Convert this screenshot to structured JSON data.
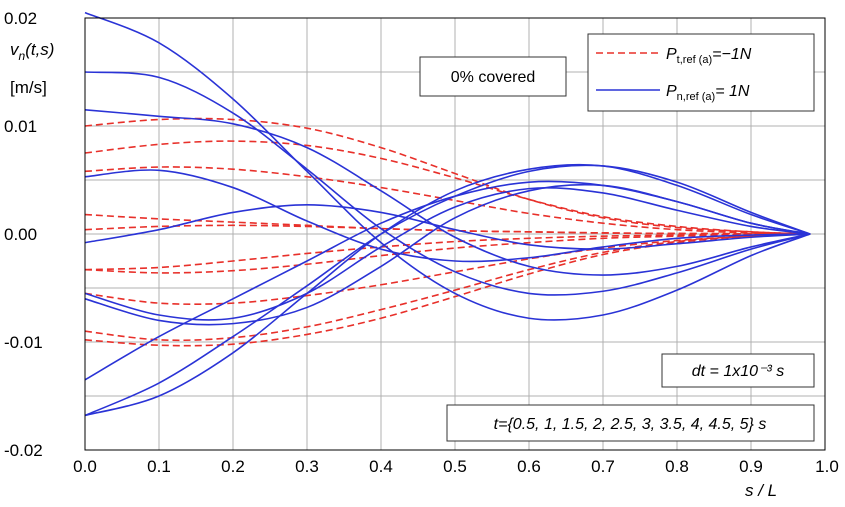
{
  "chart_data": {
    "type": "line",
    "ylabel_lines": [
      "v_n(t,s)",
      "[m/s]"
    ],
    "xlabel": "s / L",
    "xlim": [
      0.0,
      1.0
    ],
    "ylim": [
      -0.02,
      0.02
    ],
    "x_ticks": [
      "0.0",
      "0.1",
      "0.2",
      "0.3",
      "0.4",
      "0.5",
      "0.6",
      "0.7",
      "0.8",
      "0.9",
      "1.0"
    ],
    "y_ticks": [
      "0.02",
      "0.01",
      "0.00",
      "-0.01",
      "-0.02"
    ],
    "grid": true,
    "legend_position": "top-right",
    "legend": [
      {
        "name": "P_t,ref(a) = -1N",
        "label_main": "P",
        "label_sub": "t,ref (a)",
        "label_tail": "=−1N",
        "color": "#e8302a",
        "style": "dashed"
      },
      {
        "name": "P_n,ref(a) = 1N",
        "label_main": "P",
        "label_sub": "n,ref (a)",
        "label_tail": "=  1N",
        "color": "#2a33d6",
        "style": "solid"
      }
    ],
    "annotations": {
      "covered": "0% covered",
      "dt": "dt = 1x10⁻³ s",
      "times": "t={0.5, 1, 1.5, 2, 2.5, 3, 3.5, 4, 4.5, 5} s"
    },
    "series": [
      {
        "group": "dashed",
        "x": [
          0,
          0.1,
          0.2,
          0.3,
          0.4,
          0.5,
          0.6,
          0.7,
          0.8,
          0.9,
          0.98
        ],
        "y": [
          0.01,
          0.0106,
          0.0106,
          0.0098,
          0.008,
          0.0056,
          0.0032,
          0.0015,
          0.0006,
          0.0002,
          0
        ]
      },
      {
        "group": "dashed",
        "x": [
          0,
          0.1,
          0.2,
          0.3,
          0.4,
          0.5,
          0.6,
          0.7,
          0.8,
          0.9,
          0.98
        ],
        "y": [
          0.0075,
          0.0083,
          0.0086,
          0.0082,
          0.007,
          0.0052,
          0.0032,
          0.0016,
          0.0007,
          0.0002,
          0
        ]
      },
      {
        "group": "dashed",
        "x": [
          0,
          0.1,
          0.2,
          0.3,
          0.4,
          0.5,
          0.6,
          0.7,
          0.8,
          0.9,
          0.98
        ],
        "y": [
          0.0058,
          0.0062,
          0.006,
          0.0053,
          0.0043,
          0.0031,
          0.0019,
          0.001,
          0.0004,
          0.0001,
          0
        ]
      },
      {
        "group": "dashed",
        "x": [
          0,
          0.1,
          0.2,
          0.3,
          0.4,
          0.5,
          0.6,
          0.7,
          0.8,
          0.9,
          0.98
        ],
        "y": [
          0.0018,
          0.0014,
          0.0011,
          0.0008,
          0.0005,
          0.0003,
          0.0002,
          0.0001,
          5e-05,
          2e-05,
          0
        ]
      },
      {
        "group": "dashed",
        "x": [
          0,
          0.1,
          0.2,
          0.3,
          0.4,
          0.5,
          0.6,
          0.7,
          0.8,
          0.9,
          0.98
        ],
        "y": [
          0.0004,
          0.0007,
          0.0008,
          0.0007,
          0.0005,
          0.0003,
          0.0002,
          0.0001,
          5e-05,
          2e-05,
          0
        ]
      },
      {
        "group": "dashed",
        "x": [
          0,
          0.1,
          0.2,
          0.3,
          0.4,
          0.5,
          0.6,
          0.7,
          0.8,
          0.9,
          0.98
        ],
        "y": [
          -0.0033,
          -0.0031,
          -0.0025,
          -0.0018,
          -0.0012,
          -0.0007,
          -0.0004,
          -0.0002,
          -0.0001,
          -3e-05,
          0
        ]
      },
      {
        "group": "dashed",
        "x": [
          0,
          0.1,
          0.2,
          0.3,
          0.4,
          0.5,
          0.6,
          0.7,
          0.8,
          0.9,
          0.98
        ],
        "y": [
          -0.0033,
          -0.0036,
          -0.0034,
          -0.0028,
          -0.002,
          -0.0013,
          -0.0008,
          -0.0004,
          -0.0002,
          -5e-05,
          0
        ]
      },
      {
        "group": "dashed",
        "x": [
          0,
          0.1,
          0.2,
          0.3,
          0.4,
          0.5,
          0.6,
          0.7,
          0.8,
          0.9,
          0.98
        ],
        "y": [
          -0.0055,
          -0.0064,
          -0.0064,
          -0.0057,
          -0.0047,
          -0.0035,
          -0.0023,
          -0.0013,
          -0.0006,
          -0.0002,
          0
        ]
      },
      {
        "group": "dashed",
        "x": [
          0,
          0.1,
          0.2,
          0.3,
          0.4,
          0.5,
          0.6,
          0.7,
          0.8,
          0.9,
          0.98
        ],
        "y": [
          -0.009,
          -0.0098,
          -0.0096,
          -0.0086,
          -0.007,
          -0.0052,
          -0.0033,
          -0.0017,
          -0.0007,
          -0.0002,
          0
        ]
      },
      {
        "group": "dashed",
        "x": [
          0,
          0.1,
          0.2,
          0.3,
          0.4,
          0.5,
          0.6,
          0.7,
          0.8,
          0.9,
          0.98
        ],
        "y": [
          -0.0098,
          -0.0103,
          -0.0102,
          -0.0093,
          -0.0078,
          -0.0058,
          -0.0037,
          -0.0019,
          -0.0008,
          -0.0002,
          0
        ]
      },
      {
        "group": "solid",
        "x": [
          0,
          0.1,
          0.2,
          0.3,
          0.4,
          0.5,
          0.6,
          0.7,
          0.8,
          0.9,
          0.98
        ],
        "y": [
          0.0205,
          0.0177,
          0.0125,
          0.0058,
          -0.0008,
          -0.0055,
          -0.0078,
          -0.0075,
          -0.0052,
          -0.002,
          0
        ]
      },
      {
        "group": "solid",
        "x": [
          0,
          0.1,
          0.2,
          0.3,
          0.4,
          0.5,
          0.6,
          0.7,
          0.8,
          0.9,
          0.98
        ],
        "y": [
          0.015,
          0.0145,
          0.0112,
          0.006,
          0.0005,
          -0.0035,
          -0.0055,
          -0.0053,
          -0.0036,
          -0.0014,
          0
        ]
      },
      {
        "group": "solid",
        "x": [
          0,
          0.1,
          0.2,
          0.3,
          0.4,
          0.5,
          0.6,
          0.7,
          0.8,
          0.9,
          0.98
        ],
        "y": [
          0.0115,
          0.0109,
          0.0102,
          0.008,
          0.004,
          -0.0003,
          -0.003,
          -0.0038,
          -0.003,
          -0.0012,
          0
        ]
      },
      {
        "group": "solid",
        "x": [
          0,
          0.1,
          0.2,
          0.3,
          0.4,
          0.5,
          0.6,
          0.7,
          0.8,
          0.9,
          0.98
        ],
        "y": [
          0.0053,
          0.0059,
          0.0043,
          0.0012,
          -0.0014,
          -0.0025,
          -0.0022,
          -0.0012,
          -0.0004,
          -0.0001,
          0
        ]
      },
      {
        "group": "solid",
        "x": [
          0,
          0.1,
          0.2,
          0.3,
          0.4,
          0.5,
          0.6,
          0.7,
          0.8,
          0.9,
          0.98
        ],
        "y": [
          -0.0008,
          0.0004,
          0.002,
          0.0027,
          0.002,
          0.0004,
          -0.001,
          -0.0014,
          -0.0009,
          -0.0003,
          0
        ]
      },
      {
        "group": "solid",
        "x": [
          0,
          0.1,
          0.2,
          0.3,
          0.4,
          0.5,
          0.6,
          0.7,
          0.8,
          0.9,
          0.98
        ],
        "y": [
          -0.0055,
          -0.0075,
          -0.0078,
          -0.0055,
          -0.0012,
          0.0025,
          0.0042,
          0.0038,
          0.0022,
          0.0007,
          0
        ]
      },
      {
        "group": "solid",
        "x": [
          0,
          0.1,
          0.2,
          0.3,
          0.4,
          0.5,
          0.6,
          0.7,
          0.8,
          0.9,
          0.98
        ],
        "y": [
          -0.006,
          -0.008,
          -0.0083,
          -0.0068,
          -0.003,
          0.0015,
          0.004,
          0.0045,
          0.003,
          0.001,
          0
        ]
      },
      {
        "group": "solid",
        "x": [
          0,
          0.1,
          0.2,
          0.3,
          0.4,
          0.5,
          0.6,
          0.7,
          0.8,
          0.9,
          0.98
        ],
        "y": [
          -0.0135,
          -0.0095,
          -0.006,
          -0.0025,
          0.001,
          0.0035,
          0.0048,
          0.0045,
          0.003,
          0.001,
          0
        ]
      },
      {
        "group": "solid",
        "x": [
          0,
          0.1,
          0.2,
          0.3,
          0.4,
          0.5,
          0.6,
          0.7,
          0.8,
          0.9,
          0.98
        ],
        "y": [
          -0.0168,
          -0.015,
          -0.011,
          -0.0055,
          0.0,
          0.004,
          0.006,
          0.0063,
          0.0045,
          0.0018,
          0
        ]
      },
      {
        "group": "solid",
        "x": [
          0,
          0.1,
          0.2,
          0.3,
          0.4,
          0.5,
          0.6,
          0.7,
          0.8,
          0.9,
          0.98
        ],
        "y": [
          -0.0168,
          -0.0138,
          -0.0095,
          -0.0048,
          0.0,
          0.0035,
          0.0058,
          0.0063,
          0.0048,
          0.002,
          0
        ]
      }
    ]
  }
}
